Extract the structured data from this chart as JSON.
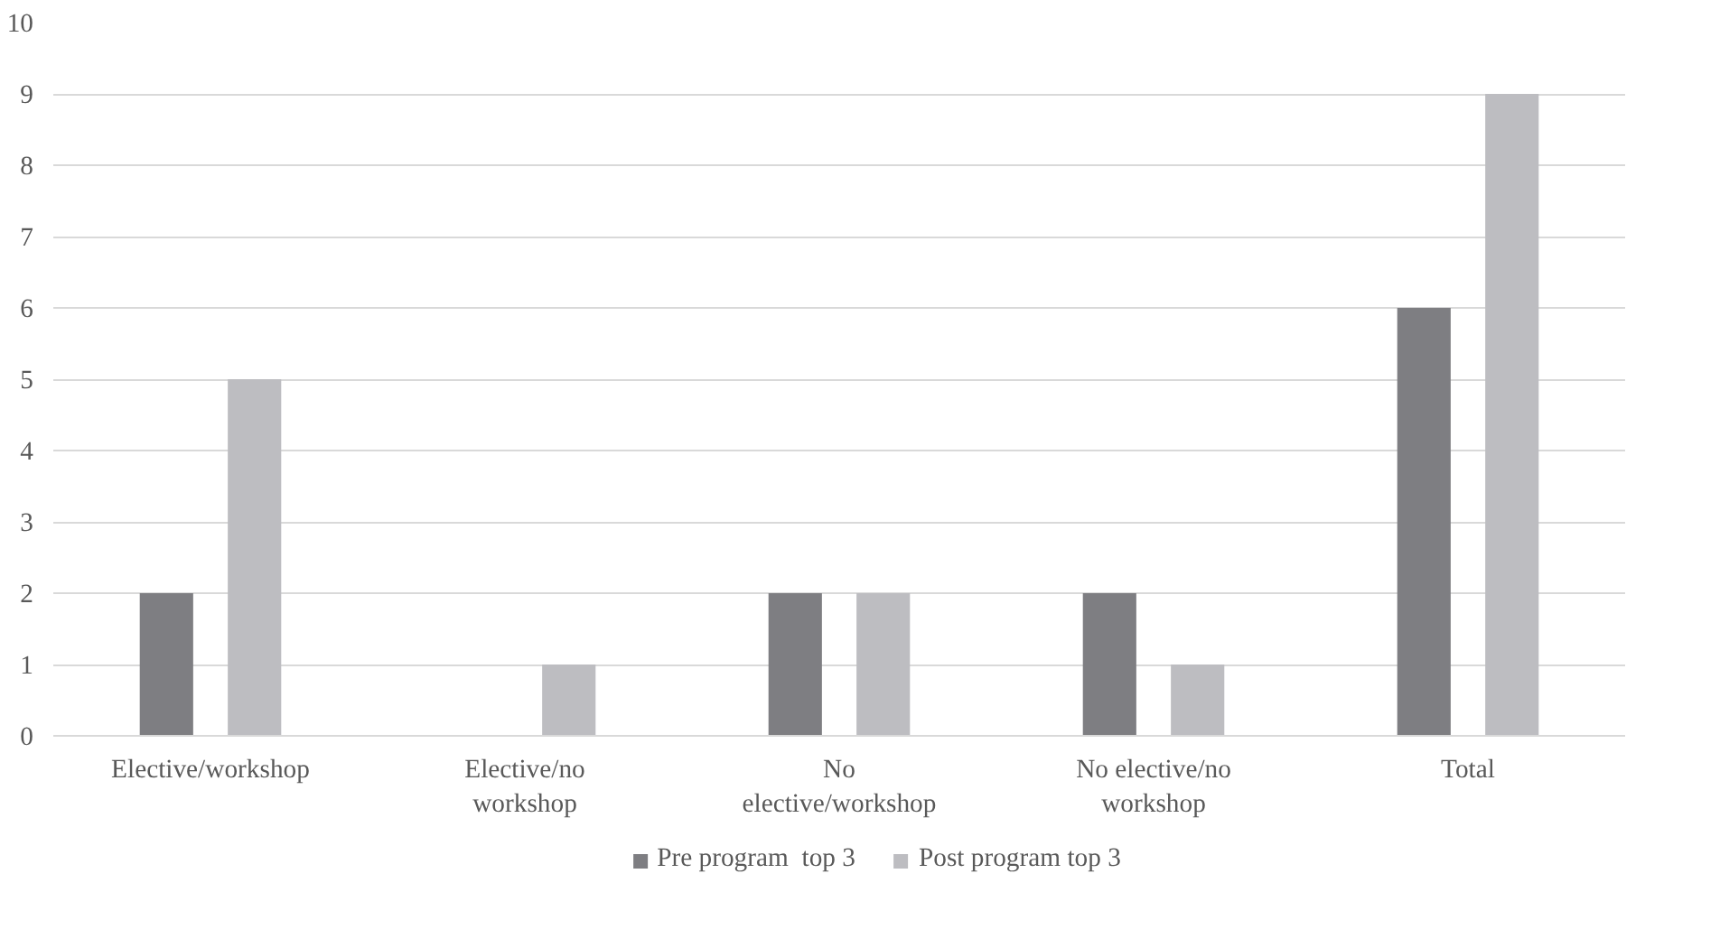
{
  "chart_data": {
    "type": "bar",
    "categories": [
      "Elective/workshop",
      "Elective/no\nworkshop",
      "No\nelective/workshop",
      "No elective/no\nworkshop",
      "Total"
    ],
    "series": [
      {
        "name": "Pre program  top 3",
        "color": "#7e7e82",
        "values": [
          2,
          0,
          2,
          2,
          6
        ]
      },
      {
        "name": "Post program top 3",
        "color": "#bdbdc1",
        "values": [
          5,
          1,
          2,
          1,
          9
        ]
      }
    ],
    "ylim": [
      0,
      10
    ],
    "yticks": [
      0,
      1,
      2,
      3,
      4,
      5,
      6,
      7,
      8,
      9,
      10
    ],
    "grid": "y",
    "legend": "bottom"
  }
}
